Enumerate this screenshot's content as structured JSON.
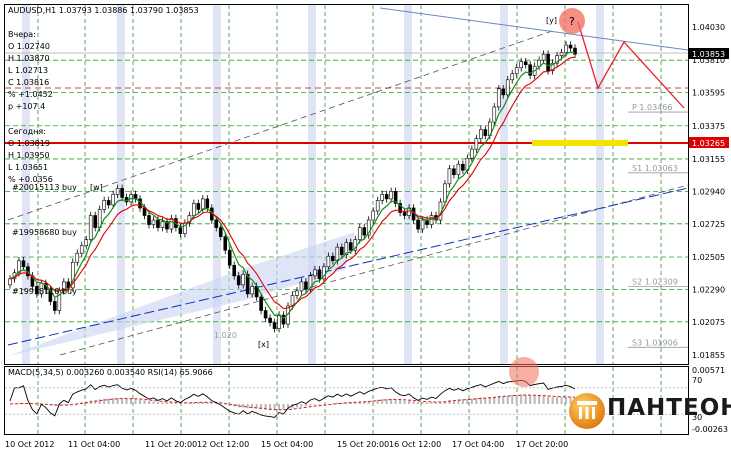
{
  "chart_data": {
    "type": "candlestick",
    "symbol_header": "AUDUSD,H1  1.03793 1.03886 1.03790 1.03853",
    "info_panel": {
      "yesterday_label": "Вчера:",
      "yesterday_lines": [
        "O 1.02740",
        "H 1.03870",
        "L 1.02713",
        "C 1.03816",
        "% +1.0452",
        "p +107.4"
      ],
      "today_label": "Сегодня:",
      "today_lines": [
        "O 1.03819",
        "H 1.03950",
        "L 1.03651",
        "% +0.0356"
      ]
    },
    "price_axis": {
      "ticks": [
        "1.04030",
        "1.03810",
        "1.03595",
        "1.03375",
        "1.03155",
        "1.02940",
        "1.02725",
        "1.02505",
        "1.02290",
        "1.02075",
        "1.01855"
      ],
      "tick_values": [
        1.0403,
        1.0381,
        1.03595,
        1.03375,
        1.03155,
        1.0294,
        1.02725,
        1.02505,
        1.0229,
        1.02075,
        1.01855
      ],
      "current_price_label": "1.03853",
      "marked_level_label": "1.03265",
      "range": [
        1.0175,
        1.0408
      ]
    },
    "levels": [
      {
        "label": "P 1.03466",
        "value": 1.03466
      },
      {
        "label": "S1 1.03063",
        "value": 1.03063
      },
      {
        "label": "S2 1.02309",
        "value": 1.02309
      },
      {
        "label": "S3 1.01906",
        "value": 1.01906
      }
    ],
    "annotations": {
      "wave_y": "[y]",
      "wave_w": "[w]",
      "wave_x": "[x]",
      "question_mark": "?",
      "buy_labels": [
        "#20015113 buy",
        "#19958680 buy",
        "#19958118 buy"
      ],
      "partial_label": "1.020"
    },
    "time_axis": [
      "10 Oct 2012",
      "11 Oct 04:00",
      "11 Oct 20:00",
      "12 Oct 12:00",
      "15 Oct 04:00",
      "15 Oct 20:00",
      "16 Oct 12:00",
      "17 Oct 04:00",
      "17 Oct 20:00"
    ],
    "macd_rsi": {
      "header": "MACD(5,34,5) 0.003260 0.003540  RSI(14) 65.9066",
      "axis_ticks": [
        "0.00571",
        "70",
        "30",
        "-0.00263"
      ]
    },
    "close": [
      1.0236,
      1.024,
      1.0248,
      1.0244,
      1.0238,
      1.0231,
      1.0226,
      1.0233,
      1.0229,
      1.0221,
      1.0215,
      1.0228,
      1.0234,
      1.023,
      1.0247,
      1.0253,
      1.0258,
      1.0262,
      1.0278,
      1.027,
      1.0282,
      1.0288,
      1.0285,
      1.0292,
      1.0296,
      1.029,
      1.0287,
      1.0292,
      1.0289,
      1.0283,
      1.0278,
      1.0272,
      1.0275,
      1.027,
      1.0274,
      1.0269,
      1.0276,
      1.027,
      1.0266,
      1.0273,
      1.0278,
      1.0286,
      1.0282,
      1.0289,
      1.0283,
      1.0275,
      1.027,
      1.0264,
      1.0255,
      1.0245,
      1.0238,
      1.0232,
      1.0239,
      1.0226,
      1.0231,
      1.0224,
      1.0215,
      1.021,
      1.0207,
      1.0203,
      1.0212,
      1.0206,
      1.0218,
      1.0225,
      1.0228,
      1.0234,
      1.0229,
      1.0238,
      1.0242,
      1.0236,
      1.0244,
      1.0251,
      1.0248,
      1.0257,
      1.0252,
      1.026,
      1.0255,
      1.0262,
      1.027,
      1.0265,
      1.0275,
      1.0281,
      1.0288,
      1.0292,
      1.0289,
      1.0294,
      1.0286,
      1.028,
      1.0278,
      1.0283,
      1.0275,
      1.0269,
      1.0275,
      1.0272,
      1.0278,
      1.0275,
      1.0287,
      1.0299,
      1.0309,
      1.0305,
      1.0312,
      1.0308,
      1.0316,
      1.0322,
      1.0329,
      1.0335,
      1.0331,
      1.034,
      1.035,
      1.0362,
      1.0358,
      1.0368,
      1.0372,
      1.0376,
      1.038,
      1.0378,
      1.0371,
      1.0377,
      1.0381,
      1.0385,
      1.0374,
      1.0379,
      1.0384,
      1.0386,
      1.0391,
      1.0389,
      1.0385
    ]
  }
}
